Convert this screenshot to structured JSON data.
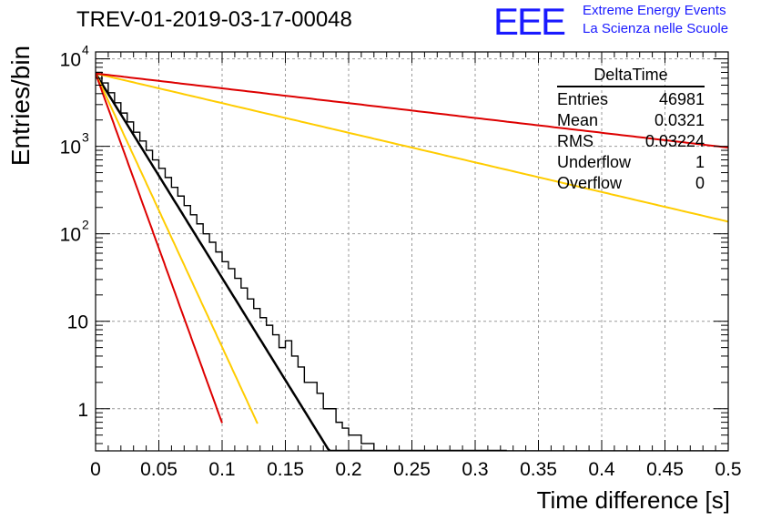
{
  "title": "TREV-01-2019-03-17-00048",
  "logo": {
    "mark": "EEE",
    "line1": "Extreme Energy Events",
    "line2": "La Scienza nelle Scuole",
    "color": "#1a1aff"
  },
  "stats_box": {
    "name": "DeltaTime",
    "rows": [
      {
        "label": "Entries",
        "value": "46981"
      },
      {
        "label": "Mean",
        "value": "0.0321"
      },
      {
        "label": "RMS",
        "value": "0.03224"
      },
      {
        "label": "Underflow",
        "value": "1"
      },
      {
        "label": "Overflow",
        "value": "0"
      }
    ]
  },
  "chart_data": {
    "type": "line",
    "title": "TREV-01-2019-03-17-00048",
    "xlabel": "Time difference [s]",
    "ylabel": "Entries/bin",
    "xlim": [
      0,
      0.5
    ],
    "ylim": [
      0.33,
      12000
    ],
    "yscale": "log",
    "grid": true,
    "xticks": [
      "0",
      "0.05",
      "0.1",
      "0.15",
      "0.2",
      "0.25",
      "0.3",
      "0.35",
      "0.4",
      "0.45",
      "0.5"
    ],
    "yticks": [
      {
        "value": 1,
        "label": "1"
      },
      {
        "value": 10,
        "label": "10"
      },
      {
        "value": 100,
        "label": "10",
        "exp": "2"
      },
      {
        "value": 1000,
        "label": "10",
        "exp": "3"
      },
      {
        "value": 10000,
        "label": "10",
        "exp": "4"
      }
    ],
    "histogram": {
      "bin_width": 0.005,
      "values": [
        7000,
        5300,
        4100,
        3150,
        2400,
        1900,
        1450,
        1150,
        900,
        700,
        560,
        440,
        340,
        270,
        210,
        165,
        130,
        100,
        80,
        62,
        48,
        40,
        31,
        24,
        18,
        14,
        11,
        9,
        7,
        5,
        6,
        4,
        3,
        2,
        2,
        1.5,
        1,
        1,
        0.7,
        0.6,
        0.5,
        0.5,
        0.4,
        0.4,
        0.3,
        0.3,
        0.3,
        0.2,
        0.2,
        0.2,
        0.2,
        0.2,
        0.2,
        0.2,
        0.2,
        0.2,
        0.2,
        0.2,
        0.2,
        0.2,
        0.2,
        0.2,
        0.2,
        0.2,
        0.2,
        0.2,
        0.2,
        0.2,
        0.2,
        0.2,
        0.2,
        0.2,
        0.2,
        0.2,
        0.2,
        0.2,
        0.2,
        0.2,
        0.2,
        0.2,
        0.2,
        0.2,
        0.2,
        0.2,
        0.2,
        0.2,
        0.2,
        0.2,
        0.2,
        0.2,
        0.2,
        0.2,
        0.2,
        0.2,
        0.2,
        0.2,
        0.2,
        0.2,
        0.2,
        0.2
      ]
    },
    "curves": [
      {
        "color": "#000000",
        "width": 2.5,
        "y0": 6800,
        "slope": 53.8,
        "x_end": 0.325
      },
      {
        "color": "#ffcc00",
        "width": 2,
        "y0": 6800,
        "slope": 7.8,
        "x_end": 0.5
      },
      {
        "color": "#ffcc00",
        "width": 2,
        "y0": 6800,
        "slope": 72,
        "x_end": 0.128
      },
      {
        "color": "#dd0000",
        "width": 2,
        "y0": 6800,
        "slope": 3.9,
        "x_end": 0.5
      },
      {
        "color": "#dd0000",
        "width": 2,
        "y0": 6800,
        "slope": 92,
        "x_end": 0.1
      }
    ]
  }
}
